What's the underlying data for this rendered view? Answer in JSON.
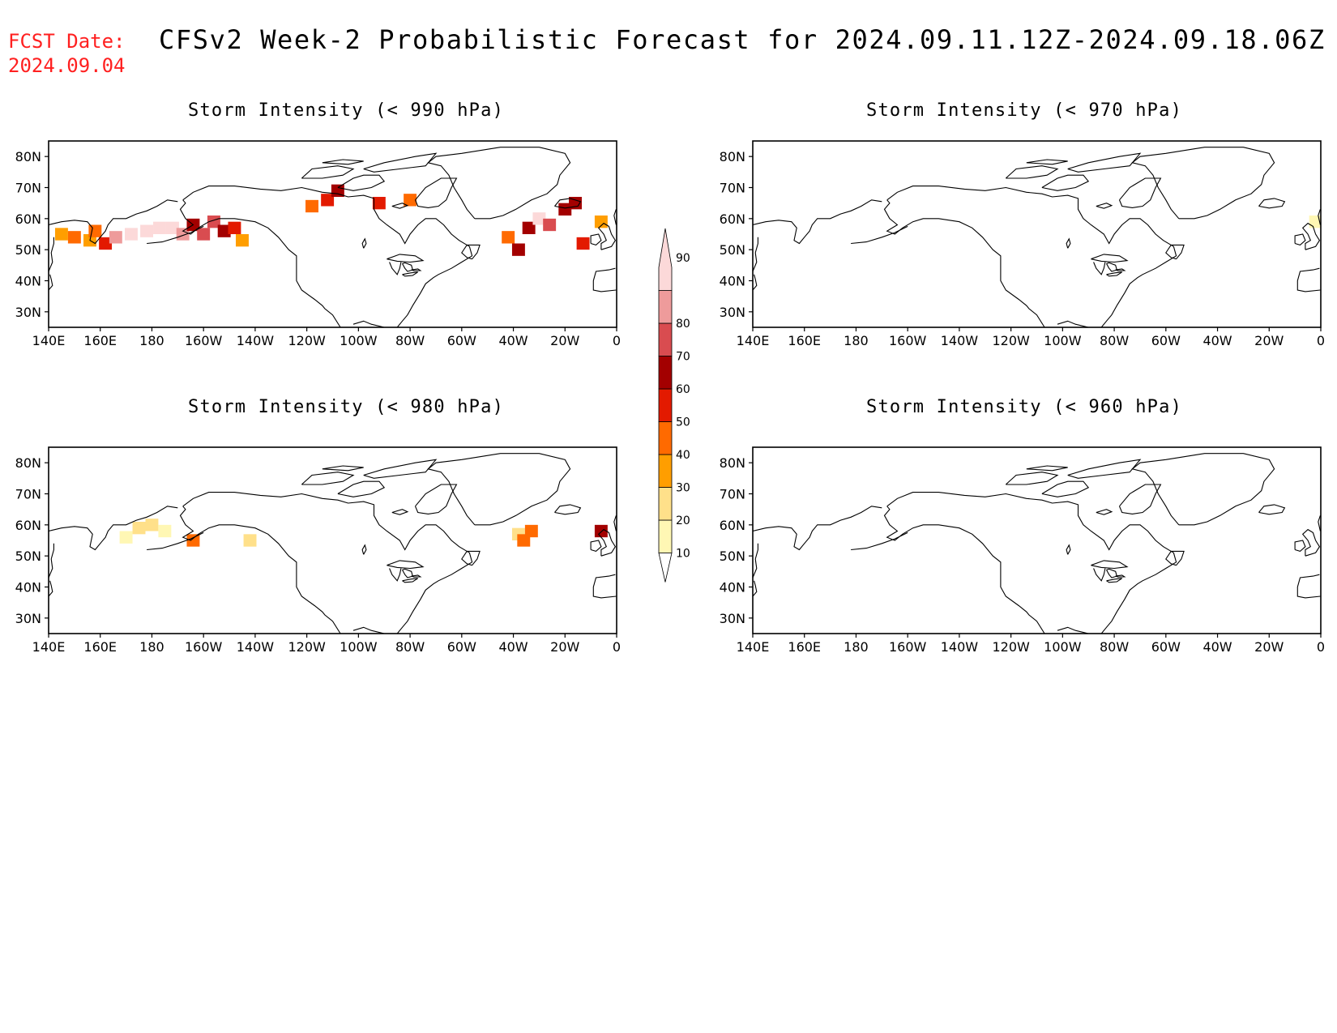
{
  "header": {
    "fcst_label": "FCST Date:",
    "fcst_date": "2024.09.04",
    "title": "CFSv2 Week-2 Probabilistic Forecast for 2024.09.11.12Z-2024.09.18.06Z"
  },
  "panels": [
    {
      "title": "Storm Intensity (< 990 hPa)",
      "threshold_hPa": 990
    },
    {
      "title": "Storm Intensity (< 970 hPa)",
      "threshold_hPa": 970
    },
    {
      "title": "Storm Intensity (< 980 hPa)",
      "threshold_hPa": 980
    },
    {
      "title": "Storm Intensity (< 960 hPa)",
      "threshold_hPa": 960
    }
  ],
  "axes": {
    "lon_labels": [
      "140E",
      "160E",
      "180",
      "160W",
      "140W",
      "120W",
      "100W",
      "80W",
      "60W",
      "40W",
      "20W",
      "0"
    ],
    "lat_labels": [
      "80N",
      "70N",
      "60N",
      "50N",
      "40N",
      "30N"
    ]
  },
  "colorbar": {
    "levels": [
      "10",
      "20",
      "30",
      "40",
      "50",
      "60",
      "70",
      "80",
      "90"
    ],
    "colors": [
      "#fff7b4",
      "#ffe08a",
      "#ff9e00",
      "#ff6a00",
      "#e31a00",
      "#a30000",
      "#d94c50",
      "#ee9b9b",
      "#fcd9d9"
    ]
  },
  "chart_data": {
    "type": "heatmap",
    "units": "probability (%)",
    "x_range_lon_east": [
      140,
      360
    ],
    "y_range_lat": [
      25,
      85
    ],
    "fields": [
      {
        "panel": "< 990 hPa",
        "cells": [
          [
            145,
            55,
            30
          ],
          [
            150,
            54,
            40
          ],
          [
            156,
            53,
            30
          ],
          [
            158,
            56,
            40
          ],
          [
            162,
            52,
            50
          ],
          [
            166,
            54,
            80
          ],
          [
            172,
            55,
            90
          ],
          [
            178,
            56,
            90
          ],
          [
            183,
            57,
            90
          ],
          [
            188,
            57,
            90
          ],
          [
            192,
            55,
            80
          ],
          [
            196,
            58,
            60
          ],
          [
            200,
            55,
            70
          ],
          [
            204,
            59,
            70
          ],
          [
            208,
            56,
            60
          ],
          [
            212,
            57,
            50
          ],
          [
            215,
            53,
            30
          ],
          [
            242,
            64,
            40
          ],
          [
            248,
            66,
            50
          ],
          [
            252,
            69,
            60
          ],
          [
            268,
            65,
            50
          ],
          [
            280,
            66,
            40
          ],
          [
            318,
            54,
            40
          ],
          [
            322,
            50,
            60
          ],
          [
            326,
            57,
            60
          ],
          [
            330,
            60,
            90
          ],
          [
            334,
            58,
            70
          ],
          [
            340,
            63,
            60
          ],
          [
            344,
            65,
            60
          ],
          [
            347,
            52,
            50
          ],
          [
            354,
            59,
            30
          ]
        ]
      },
      {
        "panel": "< 970 hPa",
        "cells": [
          [
            358,
            59,
            10
          ]
        ]
      },
      {
        "panel": "< 980 hPa",
        "cells": [
          [
            170,
            56,
            10
          ],
          [
            175,
            59,
            20
          ],
          [
            180,
            60,
            20
          ],
          [
            185,
            58,
            10
          ],
          [
            196,
            55,
            40
          ],
          [
            218,
            55,
            20
          ],
          [
            322,
            57,
            20
          ],
          [
            324,
            55,
            40
          ],
          [
            327,
            58,
            40
          ],
          [
            354,
            58,
            60
          ]
        ]
      },
      {
        "panel": "< 960 hPa",
        "cells": []
      }
    ]
  }
}
